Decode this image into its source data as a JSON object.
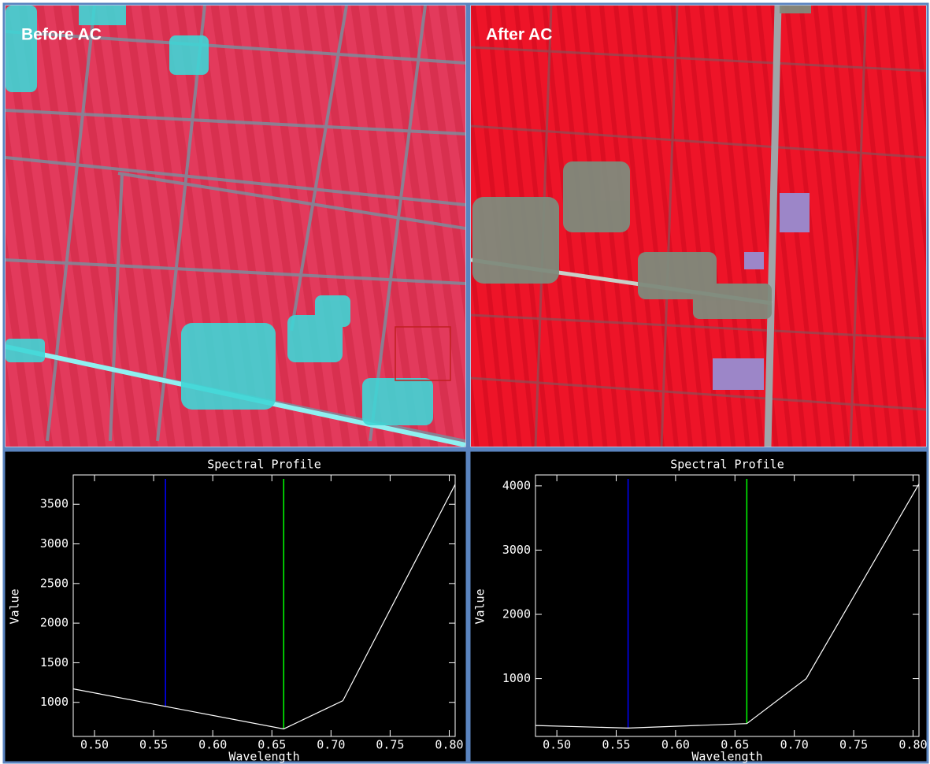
{
  "images": [
    {
      "label": "Before AC"
    },
    {
      "label": "After AC"
    }
  ],
  "chart_data": [
    {
      "type": "line",
      "title": "Spectral Profile",
      "xlabel": "Wavelength",
      "ylabel": "Value",
      "x": [
        0.482,
        0.66,
        0.71,
        0.805
      ],
      "values": [
        1170,
        665,
        1020,
        3750
      ],
      "color": "#ffffff",
      "xlim": [
        0.482,
        0.805
      ],
      "ylim": [
        570,
        3870
      ],
      "xticks": [
        {
          "value": 0.5,
          "label": "0.50"
        },
        0.55,
        {
          "value": 0.6,
          "label": "0.60"
        },
        0.65,
        {
          "value": 0.7,
          "label": "0.70"
        },
        0.75,
        {
          "value": 0.8,
          "label": "0.80"
        }
      ],
      "yticks": [
        1000,
        1500,
        2000,
        2500,
        3000,
        3500
      ],
      "markers": [
        {
          "x": 0.56,
          "color": "#0000ff"
        },
        {
          "x": 0.66,
          "color": "#00ff00"
        }
      ]
    },
    {
      "type": "line",
      "title": "Spectral Profile",
      "xlabel": "Wavelength",
      "ylabel": "Value",
      "x": [
        0.482,
        0.56,
        0.66,
        0.71,
        0.805
      ],
      "values": [
        270,
        230,
        300,
        1000,
        4030
      ],
      "color": "#ffffff",
      "xlim": [
        0.482,
        0.805
      ],
      "ylim": [
        100,
        4170
      ],
      "xticks": [
        {
          "value": 0.5,
          "label": "0.50"
        },
        0.55,
        {
          "value": 0.6,
          "label": "0.60"
        },
        0.65,
        {
          "value": 0.7,
          "label": "0.70"
        },
        0.75,
        {
          "value": 0.8,
          "label": "0.80"
        }
      ],
      "yticks": [
        1000,
        2000,
        3000,
        4000
      ],
      "markers": [
        {
          "x": 0.56,
          "color": "#0000ff"
        },
        {
          "x": 0.66,
          "color": "#00ff00"
        }
      ]
    }
  ]
}
